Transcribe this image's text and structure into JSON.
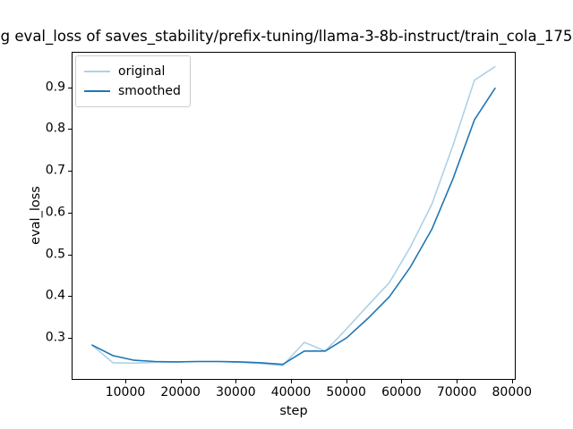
{
  "figure": {
    "title": "g eval_loss of saves_stability/prefix-tuning/llama-3-8b-instruct/train_cola_175",
    "xlabel": "step",
    "ylabel": "eval_loss"
  },
  "legend": {
    "entries": [
      {
        "label": "original"
      },
      {
        "label": "smoothed"
      }
    ]
  },
  "chart_data": {
    "type": "line",
    "title": "g eval_loss of saves_stability/prefix-tuning/llama-3-8b-instruct/train_cola_175",
    "xlabel": "step",
    "ylabel": "eval_loss",
    "grid": false,
    "legend_position": "upper left",
    "xlim": [
      277,
      80680
    ],
    "ylim": [
      0.199,
      0.985
    ],
    "x_ticks": [
      10000,
      20000,
      30000,
      40000,
      50000,
      60000,
      70000,
      80000
    ],
    "y_ticks": [
      0.3,
      0.4,
      0.5,
      0.6,
      0.7,
      0.8,
      0.9
    ],
    "x": [
      3900,
      7750,
      11600,
      15400,
      19250,
      23100,
      27000,
      30800,
      34650,
      38500,
      42400,
      46200,
      50100,
      53900,
      57800,
      61600,
      65500,
      69300,
      73200,
      77000
    ],
    "series": [
      {
        "name": "original",
        "color": "#aed1e6",
        "values": [
          0.283,
          0.24,
          0.239,
          0.241,
          0.242,
          0.243,
          0.243,
          0.241,
          0.238,
          0.233,
          0.289,
          0.268,
          0.322,
          0.377,
          0.432,
          0.517,
          0.62,
          0.76,
          0.917,
          0.95
        ]
      },
      {
        "name": "smoothed",
        "color": "#1f77b4",
        "values": [
          0.283,
          0.257,
          0.246,
          0.243,
          0.242,
          0.243,
          0.243,
          0.242,
          0.24,
          0.236,
          0.268,
          0.268,
          0.3,
          0.346,
          0.398,
          0.469,
          0.56,
          0.68,
          0.822,
          0.899
        ]
      }
    ]
  }
}
